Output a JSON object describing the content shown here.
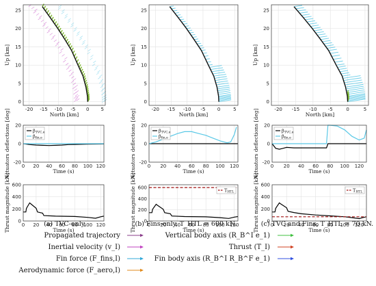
{
  "chart_data": [
    {
      "type": "line",
      "panel": "a-traj",
      "xlabel": "North [km]",
      "ylabel": "Up [km]",
      "xlim": [
        -22,
        6
      ],
      "ylim": [
        -1,
        26.5
      ],
      "xticks": [
        -20,
        -15,
        -10,
        -5,
        0,
        5
      ],
      "yticks": [
        0,
        5,
        10,
        15,
        20,
        25
      ],
      "series": [
        {
          "name": "Propagated trajectory",
          "color": "#111111",
          "x": [
            -15.5,
            -12.8,
            -10.2,
            -7.8,
            -5.5,
            -3.3,
            -1.6,
            -0.6,
            -0.1,
            0.0
          ],
          "y": [
            26,
            23,
            20,
            17,
            14,
            10,
            7,
            4,
            1.5,
            0
          ]
        }
      ],
      "vectors": "fin"
    },
    {
      "type": "line",
      "panel": "b-traj",
      "xlabel": "North [km]",
      "ylabel": "Up [km]",
      "xlim": [
        -22,
        6
      ],
      "ylim": [
        -1,
        26.5
      ],
      "xticks": [
        -20,
        -15,
        -10,
        -5,
        0,
        5
      ],
      "yticks": [
        0,
        5,
        10,
        15,
        20,
        25
      ],
      "series": [
        {
          "name": "Propagated trajectory",
          "color": "#111111",
          "x": [
            -15.5,
            -12.8,
            -10.2,
            -7.8,
            -5.5,
            -3.3,
            -1.6,
            -0.6,
            -0.1,
            0.0
          ],
          "y": [
            26,
            23,
            20,
            17,
            14,
            10,
            7,
            4,
            1.5,
            0
          ]
        }
      ],
      "vectors": "aero"
    },
    {
      "type": "line",
      "panel": "c-traj",
      "xlabel": "North [km]",
      "ylabel": "Up [km]",
      "xlim": [
        -22,
        6
      ],
      "ylim": [
        -1,
        26.5
      ],
      "xticks": [
        -20,
        -15,
        -10,
        -5,
        0,
        5
      ],
      "yticks": [
        0,
        5,
        10,
        15,
        20,
        25
      ],
      "series": [
        {
          "name": "Propagated trajectory",
          "color": "#111111",
          "x": [
            -15.5,
            -12.8,
            -10.2,
            -7.8,
            -5.5,
            -3.3,
            -1.6,
            -0.6,
            -0.1,
            0.0
          ],
          "y": [
            26,
            23,
            20,
            17,
            14,
            10,
            7,
            4,
            1.5,
            0
          ]
        }
      ],
      "vectors": "aero-large"
    },
    {
      "type": "line",
      "panel": "a-act",
      "xlabel": "Time (s)",
      "ylabel": "Actuators deflections [deg]",
      "xlim": [
        0,
        125
      ],
      "ylim": [
        -20,
        20
      ],
      "xticks": [
        0,
        20,
        40,
        60,
        80,
        100,
        120
      ],
      "yticks": [
        -20,
        0,
        20
      ],
      "legend": [
        "β_TVC,e",
        "β_fin,e"
      ],
      "series": [
        {
          "name": "β_TVC,e",
          "color": "#000000",
          "x": [
            0,
            10,
            20,
            30,
            40,
            50,
            60,
            70,
            80,
            100,
            125
          ],
          "y": [
            0,
            -1,
            -1.5,
            -1.8,
            -2,
            -1.8,
            -1.5,
            -1,
            -0.8,
            -0.5,
            -0.3
          ]
        },
        {
          "name": "β_fin,e",
          "color": "#59c8e6",
          "x": [
            0,
            125
          ],
          "y": [
            0,
            0
          ]
        }
      ]
    },
    {
      "type": "line",
      "panel": "b-act",
      "xlabel": "Time (s)",
      "ylabel": "Actuators deflections [deg]",
      "xlim": [
        0,
        125
      ],
      "ylim": [
        -20,
        20
      ],
      "xticks": [
        0,
        20,
        40,
        60,
        80,
        100,
        120
      ],
      "yticks": [
        -20,
        0,
        20
      ],
      "legend": [
        "β_TVC,e",
        "β_fin,e"
      ],
      "series": [
        {
          "name": "β_TVC,e",
          "color": "#000000",
          "x": [
            0,
            125
          ],
          "y": [
            0,
            0
          ]
        },
        {
          "name": "β_fin,e",
          "color": "#59c8e6",
          "x": [
            0,
            10,
            20,
            30,
            40,
            50,
            60,
            70,
            80,
            90,
            100,
            110,
            115,
            120,
            123
          ],
          "y": [
            0,
            2,
            5,
            8,
            11,
            13,
            13,
            11,
            9,
            6,
            3,
            1,
            2,
            10,
            18
          ]
        }
      ]
    },
    {
      "type": "line",
      "panel": "c-act",
      "xlabel": "Time (s)",
      "ylabel": "Actuators deflections [deg]",
      "xlim": [
        0,
        130
      ],
      "ylim": [
        -20,
        20
      ],
      "xticks": [
        0,
        20,
        40,
        60,
        80,
        100,
        120
      ],
      "yticks": [
        -20,
        0,
        20
      ],
      "legend": [
        "β_TVC,e",
        "β_fin,e"
      ],
      "series": [
        {
          "name": "β_TVC,e",
          "color": "#000000",
          "x": [
            0,
            5,
            10,
            15,
            20,
            30,
            40,
            60,
            75,
            77,
            80,
            90,
            110,
            130
          ],
          "y": [
            0,
            -5,
            -6,
            -5,
            -4,
            -4.5,
            -4.5,
            -4.5,
            -4.5,
            0,
            0,
            0,
            0,
            0
          ]
        },
        {
          "name": "β_fin,e",
          "color": "#59c8e6",
          "x": [
            0,
            75,
            77,
            80,
            90,
            100,
            110,
            120,
            127,
            130
          ],
          "y": [
            0,
            0,
            20,
            20,
            19,
            15,
            8,
            4,
            6,
            15
          ]
        }
      ]
    },
    {
      "type": "line",
      "panel": "a-thrust",
      "xlabel": "Time (s)",
      "ylabel": "Thrust magnitude [kN]",
      "xlim": [
        0,
        125
      ],
      "ylim": [
        0,
        600
      ],
      "xticks": [
        0,
        20,
        40,
        60,
        80,
        100,
        120
      ],
      "yticks": [
        0,
        200,
        400,
        600
      ],
      "series": [
        {
          "name": "Thrust",
          "color": "#000000",
          "x": [
            0,
            4,
            5,
            10,
            11,
            20,
            22,
            30,
            32,
            50,
            80,
            100,
            112,
            120,
            125
          ],
          "y": [
            150,
            150,
            210,
            300,
            290,
            210,
            150,
            130,
            90,
            80,
            75,
            60,
            45,
            70,
            80
          ]
        }
      ]
    },
    {
      "type": "line",
      "panel": "b-thrust",
      "xlabel": "Time (s)",
      "ylabel": "Thrust magnitude [kN]",
      "xlim": [
        0,
        125
      ],
      "ylim": [
        0,
        650
      ],
      "xticks": [
        0,
        20,
        40,
        60,
        80,
        100,
        120
      ],
      "yticks": [
        0,
        200,
        400,
        600
      ],
      "legend": [
        "T_HTL"
      ],
      "series": [
        {
          "name": "Thrust",
          "color": "#000000",
          "x": [
            0,
            4,
            5,
            10,
            11,
            20,
            22,
            30,
            32,
            50,
            80,
            100,
            112,
            120,
            125
          ],
          "y": [
            150,
            150,
            210,
            300,
            290,
            210,
            150,
            130,
            90,
            80,
            75,
            60,
            45,
            70,
            80
          ]
        },
        {
          "name": "T_HTL",
          "color": "#a01010",
          "dash": true,
          "x": [
            0,
            125
          ],
          "y": [
            600,
            600
          ]
        }
      ]
    },
    {
      "type": "line",
      "panel": "c-thrust",
      "xlabel": "Time (s)",
      "ylabel": "Thrust magnitude [kN]",
      "xlim": [
        0,
        130
      ],
      "ylim": [
        0,
        600
      ],
      "xticks": [
        0,
        20,
        40,
        60,
        80,
        100,
        120
      ],
      "yticks": [
        0,
        200,
        400,
        600
      ],
      "legend": [
        "T_HTL"
      ],
      "series": [
        {
          "name": "Thrust",
          "color": "#000000",
          "x": [
            0,
            4,
            5,
            10,
            11,
            20,
            22,
            30,
            40,
            60,
            80,
            100,
            120,
            125,
            130
          ],
          "y": [
            150,
            150,
            210,
            300,
            290,
            220,
            160,
            140,
            120,
            100,
            85,
            70,
            40,
            55,
            70
          ]
        },
        {
          "name": "T_HTL",
          "color": "#a01010",
          "dash": true,
          "x": [
            0,
            130
          ],
          "y": [
            70,
            70
          ]
        }
      ]
    }
  ],
  "captions": {
    "a": "(a) TVC-only.",
    "b": "(b) Fins-only, T_HTL = 600 kN.",
    "c": "(c) TVC and Fins, T_HTL = 70 kN."
  },
  "bottom_legend": [
    {
      "label": "Propagated trajectory",
      "color": "#8a3d8a"
    },
    {
      "label": "Inertial velocity (v_I)",
      "color": "#c040c0"
    },
    {
      "label": "Fin force (F_fins,I)",
      "color": "#30a8d8"
    },
    {
      "label": "Aerodynamic force (F_aero,I)",
      "color": "#e08a1c"
    },
    {
      "label": "Vertical body axis (R_B^I e_1)",
      "color": "#40c040"
    },
    {
      "label": "Thrust (T_I)",
      "color": "#d04020"
    },
    {
      "label": "Fin body axis (R_B^I R_B^F e_1)",
      "color": "#3050e0"
    }
  ],
  "colors": {
    "aero": "#59c8e6",
    "fin": "#c040c0",
    "green": "#7fb830"
  }
}
